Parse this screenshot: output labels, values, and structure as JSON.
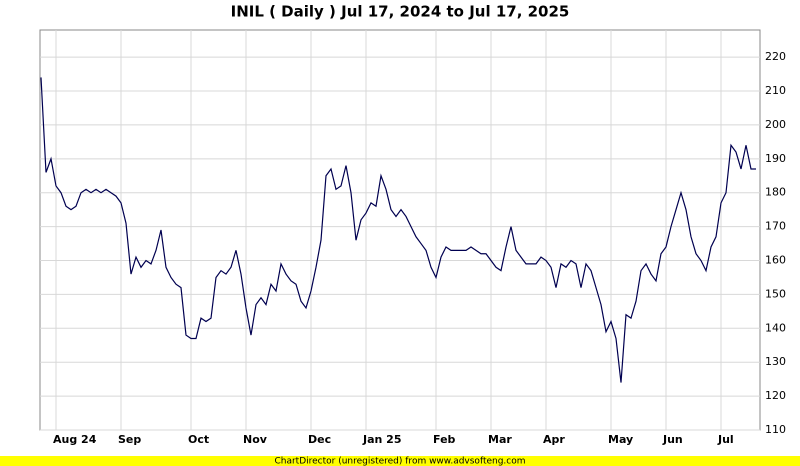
{
  "chart_data": {
    "type": "line",
    "title": "INIL ( Daily ) Jul 17, 2024 to Jul 17, 2025",
    "footer": "ChartDirector (unregistered) from www.advsofteng.com",
    "categories": [
      null,
      null,
      null,
      "Aug 24",
      null,
      null,
      null,
      null,
      null,
      null,
      null,
      null,
      null,
      null,
      null,
      null,
      "Sep",
      null,
      null,
      null,
      null,
      null,
      null,
      null,
      null,
      null,
      null,
      null,
      null,
      null,
      "Oct",
      null,
      null,
      null,
      null,
      null,
      null,
      null,
      null,
      null,
      null,
      "Nov",
      null,
      null,
      null,
      null,
      null,
      null,
      null,
      null,
      null,
      null,
      null,
      null,
      "Dec",
      null,
      null,
      null,
      null,
      null,
      null,
      null,
      null,
      null,
      null,
      "Jan 25",
      null,
      null,
      null,
      null,
      null,
      null,
      null,
      null,
      null,
      null,
      null,
      null,
      null,
      "Feb",
      null,
      null,
      null,
      null,
      null,
      null,
      null,
      null,
      null,
      null,
      "Mar",
      null,
      null,
      null,
      null,
      null,
      null,
      null,
      null,
      null,
      null,
      "Apr",
      null,
      null,
      null,
      null,
      null,
      null,
      null,
      null,
      null,
      null,
      null,
      null,
      "May",
      null,
      null,
      null,
      null,
      null,
      null,
      null,
      null,
      null,
      null,
      "Jun",
      null,
      null,
      null,
      null,
      null,
      null,
      null,
      null,
      null,
      null,
      "Jul",
      null,
      null,
      null,
      null,
      null,
      null,
      null
    ],
    "values": [
      214,
      186,
      190,
      182,
      180,
      176,
      175,
      176,
      180,
      181,
      180,
      181,
      180,
      181,
      180,
      179,
      177,
      171,
      156,
      161,
      158,
      160,
      159,
      163,
      169,
      158,
      155,
      153,
      152,
      138,
      137,
      137,
      143,
      142,
      143,
      155,
      157,
      156,
      158,
      163,
      156,
      146,
      138,
      147,
      149,
      147,
      153,
      151,
      159,
      156,
      154,
      153,
      148,
      146,
      151,
      158,
      166,
      185,
      187,
      181,
      182,
      188,
      180,
      166,
      172,
      174,
      177,
      176,
      185,
      181,
      175,
      173,
      175,
      173,
      170,
      167,
      165,
      163,
      158,
      155,
      161,
      164,
      163,
      163,
      163,
      163,
      164,
      163,
      162,
      162,
      160,
      158,
      157,
      164,
      170,
      163,
      161,
      159,
      159,
      159,
      161,
      160,
      158,
      152,
      159,
      158,
      160,
      159,
      152,
      159,
      157,
      152,
      147,
      139,
      142,
      137,
      124,
      144,
      143,
      148,
      157,
      159,
      156,
      154,
      162,
      164,
      170,
      175,
      180,
      175,
      167,
      162,
      160,
      157,
      164,
      167,
      177,
      180,
      194,
      192,
      187,
      194,
      187,
      187
    ],
    "color": "#000050",
    "ylim": [
      110,
      228
    ],
    "yticks": [
      110,
      120,
      130,
      140,
      150,
      160,
      170,
      180,
      190,
      200,
      210,
      220
    ],
    "grid": true
  }
}
